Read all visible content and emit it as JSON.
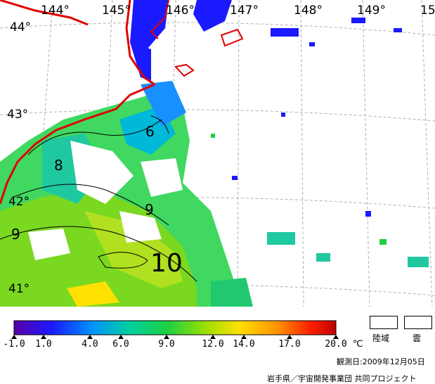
{
  "map": {
    "lon_labels": [
      "144°",
      "145°",
      "146°",
      "147°",
      "148°",
      "149°",
      "15"
    ],
    "lat_labels": [
      "44°",
      "43°",
      "42°",
      "41°"
    ],
    "contour_labels": [
      "6",
      "8",
      "9",
      "9",
      "10"
    ]
  },
  "colorbar": {
    "ticks": [
      "-1.0",
      "1.0",
      "4.0",
      "6.0",
      "9.0",
      "12.0",
      "14.0",
      "17.0",
      "20.0"
    ],
    "unit": "℃",
    "range": [
      -1.0,
      20.0
    ],
    "colors": [
      "#5a00a8",
      "#1a1aff",
      "#0090ff",
      "#00d0a0",
      "#20d040",
      "#a0e000",
      "#ffe000",
      "#ff9000",
      "#ff2000",
      "#c00000"
    ]
  },
  "legend": {
    "land_label": "陸域",
    "cloud_label": "雲"
  },
  "observation_date": "観測日:2009年12月05日",
  "credit": "岩手県／宇宙開発事業団 共同プロジェクト"
}
